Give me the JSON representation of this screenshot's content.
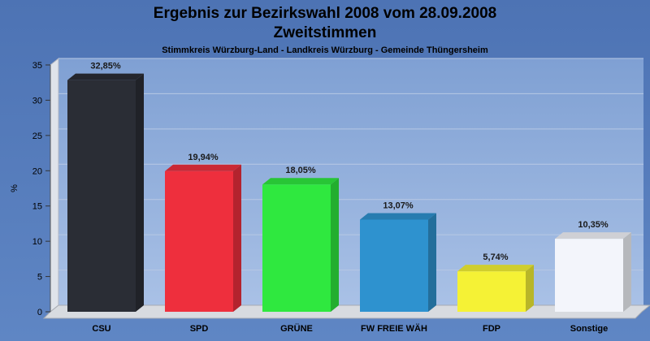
{
  "chart_data": {
    "type": "bar",
    "title": "Ergebnis zur Bezirkswahl 2008 vom 28.09.2008",
    "subtitle": "Zweitstimmen",
    "caption": "Stimmkreis Würzburg-Land - Landkreis Würzburg - Gemeinde Thüngersheim",
    "ylabel": "%",
    "xlabel": "",
    "ylim": [
      0,
      35
    ],
    "yticks": [
      0,
      5,
      10,
      15,
      20,
      25,
      30,
      35
    ],
    "grid": true,
    "categories": [
      "CSU",
      "SPD",
      "GRÜNE",
      "FW FREIE WÄH",
      "FDP",
      "Sonstige"
    ],
    "values": [
      32.85,
      19.94,
      18.05,
      13.07,
      5.74,
      10.35
    ],
    "value_labels": [
      "32,85%",
      "19,94%",
      "18,05%",
      "13,07%",
      "5,74%",
      "10,35%"
    ],
    "colors": [
      "#2a2d35",
      "#ee2f3d",
      "#2fe83f",
      "#2e92cf",
      "#f5f235",
      "#f3f5fb"
    ]
  }
}
